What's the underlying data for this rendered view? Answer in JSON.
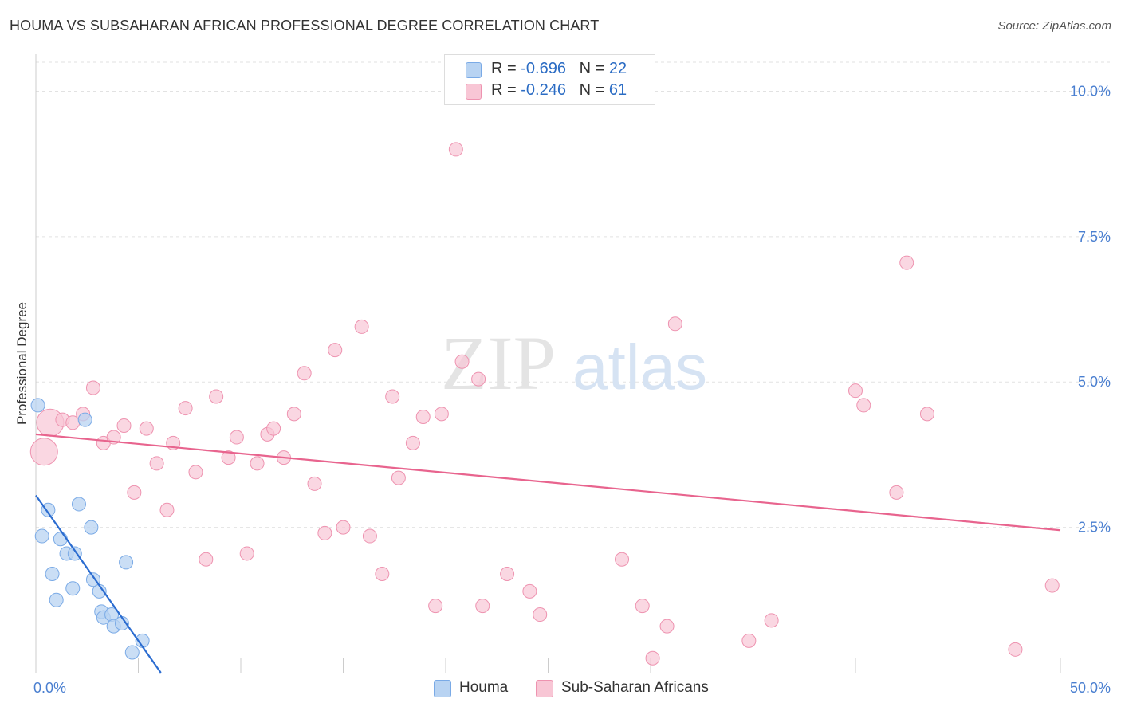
{
  "title": "HOUMA VS SUBSAHARAN AFRICAN PROFESSIONAL DEGREE CORRELATION CHART",
  "source": "Source: ZipAtlas.com",
  "watermark": {
    "part1": "ZIP",
    "part2": "atlas"
  },
  "legend": {
    "rows": [
      {
        "r_label": "R =",
        "r_value": "-0.696",
        "n_label": "N =",
        "n_value": "22"
      },
      {
        "r_label": "R =",
        "r_value": "-0.246",
        "n_label": "N =",
        "n_value": "61"
      }
    ]
  },
  "bottom_legend": {
    "series1": "Houma",
    "series2": "Sub-Saharan Africans"
  },
  "colors": {
    "houma_fill": "#b8d3f2",
    "houma_stroke": "#7aaae6",
    "houma_line": "#2b6cd0",
    "ssa_fill": "#f8c6d5",
    "ssa_stroke": "#ee93b0",
    "ssa_line": "#e8648e",
    "grid": "#e2e2e2",
    "tick_text": "#4a7fd0"
  },
  "chart_data": {
    "type": "scatter",
    "title": "HOUMA VS SUBSAHARAN AFRICAN PROFESSIONAL DEGREE CORRELATION CHART",
    "xlabel": "",
    "ylabel": "Professional Degree",
    "xlim": [
      0,
      50
    ],
    "ylim": [
      0,
      10.5
    ],
    "x_tick_labels": [
      "0.0%",
      "50.0%"
    ],
    "y_ticks": [
      2.5,
      5.0,
      7.5,
      10.0
    ],
    "y_tick_labels": [
      "2.5%",
      "5.0%",
      "7.5%",
      "10.0%"
    ],
    "series": [
      {
        "name": "Houma",
        "r": -0.696,
        "n": 22,
        "trend": {
          "x": [
            0,
            6.1
          ],
          "y": [
            3.05,
            0.0
          ]
        },
        "points": [
          {
            "x": 0.1,
            "y": 4.6
          },
          {
            "x": 0.3,
            "y": 2.35
          },
          {
            "x": 0.6,
            "y": 2.8
          },
          {
            "x": 0.8,
            "y": 1.7
          },
          {
            "x": 1.0,
            "y": 1.25
          },
          {
            "x": 1.2,
            "y": 2.3
          },
          {
            "x": 1.5,
            "y": 2.05
          },
          {
            "x": 1.8,
            "y": 1.45
          },
          {
            "x": 1.9,
            "y": 2.05
          },
          {
            "x": 2.1,
            "y": 2.9
          },
          {
            "x": 2.7,
            "y": 2.5
          },
          {
            "x": 2.8,
            "y": 1.6
          },
          {
            "x": 3.1,
            "y": 1.4
          },
          {
            "x": 3.2,
            "y": 1.05
          },
          {
            "x": 3.3,
            "y": 0.95
          },
          {
            "x": 3.7,
            "y": 1.0
          },
          {
            "x": 3.8,
            "y": 0.8
          },
          {
            "x": 4.2,
            "y": 0.85
          },
          {
            "x": 4.4,
            "y": 1.9
          },
          {
            "x": 4.7,
            "y": 0.35
          },
          {
            "x": 5.2,
            "y": 0.55
          },
          {
            "x": 2.4,
            "y": 4.35
          }
        ]
      },
      {
        "name": "Sub-Saharan Africans",
        "r": -0.246,
        "n": 61,
        "trend": {
          "x": [
            0,
            50
          ],
          "y": [
            4.1,
            2.45
          ]
        },
        "points": [
          {
            "x": 0.4,
            "y": 3.8,
            "big": true
          },
          {
            "x": 0.7,
            "y": 4.3,
            "big": true
          },
          {
            "x": 1.3,
            "y": 4.35
          },
          {
            "x": 1.8,
            "y": 4.3
          },
          {
            "x": 2.3,
            "y": 4.45
          },
          {
            "x": 2.8,
            "y": 4.9
          },
          {
            "x": 3.3,
            "y": 3.95
          },
          {
            "x": 3.8,
            "y": 4.05
          },
          {
            "x": 4.3,
            "y": 4.25
          },
          {
            "x": 4.8,
            "y": 3.1
          },
          {
            "x": 5.4,
            "y": 4.2
          },
          {
            "x": 5.9,
            "y": 3.6
          },
          {
            "x": 6.4,
            "y": 2.8
          },
          {
            "x": 6.7,
            "y": 3.95
          },
          {
            "x": 7.3,
            "y": 4.55
          },
          {
            "x": 7.8,
            "y": 3.45
          },
          {
            "x": 8.3,
            "y": 1.95
          },
          {
            "x": 8.8,
            "y": 4.75
          },
          {
            "x": 9.4,
            "y": 3.7
          },
          {
            "x": 9.8,
            "y": 4.05
          },
          {
            "x": 10.3,
            "y": 2.05
          },
          {
            "x": 10.8,
            "y": 3.6
          },
          {
            "x": 11.3,
            "y": 4.1
          },
          {
            "x": 11.6,
            "y": 4.2
          },
          {
            "x": 12.1,
            "y": 3.7
          },
          {
            "x": 12.6,
            "y": 4.45
          },
          {
            "x": 13.1,
            "y": 5.15
          },
          {
            "x": 13.6,
            "y": 3.25
          },
          {
            "x": 14.1,
            "y": 2.4
          },
          {
            "x": 14.6,
            "y": 5.55
          },
          {
            "x": 15.0,
            "y": 2.5
          },
          {
            "x": 15.9,
            "y": 5.95
          },
          {
            "x": 16.3,
            "y": 2.35
          },
          {
            "x": 16.9,
            "y": 1.7
          },
          {
            "x": 17.4,
            "y": 4.75
          },
          {
            "x": 17.7,
            "y": 3.35
          },
          {
            "x": 18.4,
            "y": 3.95
          },
          {
            "x": 18.9,
            "y": 4.4
          },
          {
            "x": 19.5,
            "y": 1.15
          },
          {
            "x": 19.8,
            "y": 4.45
          },
          {
            "x": 20.5,
            "y": 9.0
          },
          {
            "x": 20.8,
            "y": 5.35
          },
          {
            "x": 21.6,
            "y": 5.05
          },
          {
            "x": 21.8,
            "y": 1.15
          },
          {
            "x": 23.0,
            "y": 1.7
          },
          {
            "x": 24.1,
            "y": 1.4
          },
          {
            "x": 24.6,
            "y": 1.0
          },
          {
            "x": 28.6,
            "y": 1.95
          },
          {
            "x": 29.6,
            "y": 1.15
          },
          {
            "x": 30.1,
            "y": 0.25
          },
          {
            "x": 30.8,
            "y": 0.8
          },
          {
            "x": 31.2,
            "y": 6.0
          },
          {
            "x": 34.8,
            "y": 0.55
          },
          {
            "x": 35.9,
            "y": 0.9
          },
          {
            "x": 40.0,
            "y": 4.85
          },
          {
            "x": 40.4,
            "y": 4.6
          },
          {
            "x": 42.0,
            "y": 3.1
          },
          {
            "x": 42.5,
            "y": 7.05
          },
          {
            "x": 43.5,
            "y": 4.45
          },
          {
            "x": 47.8,
            "y": 0.4
          },
          {
            "x": 49.6,
            "y": 1.5
          }
        ]
      }
    ]
  }
}
